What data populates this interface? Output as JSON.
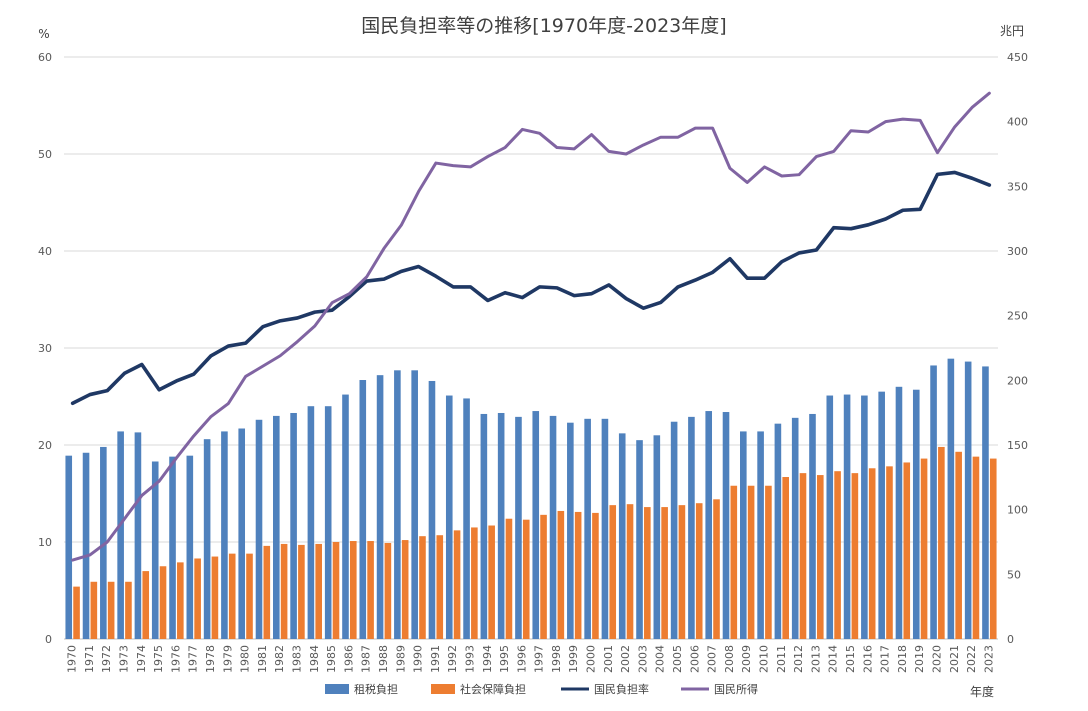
{
  "chart_data": {
    "type": "bar",
    "title": "国民負担率等の推移[1970年度-2023年度]",
    "y_left_unit": "%",
    "y_right_unit": "兆円",
    "x_unit": "年度",
    "y_left_range": [
      0,
      60
    ],
    "y_left_ticks": [
      "0",
      "10",
      "20",
      "30",
      "40",
      "50",
      "60"
    ],
    "y_right_range": [
      0,
      450
    ],
    "y_right_ticks": [
      "0",
      "50",
      "100",
      "150",
      "200",
      "250",
      "300",
      "350",
      "400",
      "450"
    ],
    "grid": true,
    "legend_position": "bottom",
    "categories": [
      "1970",
      "1971",
      "1972",
      "1973",
      "1974",
      "1975",
      "1976",
      "1977",
      "1978",
      "1979",
      "1980",
      "1981",
      "1982",
      "1983",
      "1984",
      "1985",
      "1986",
      "1987",
      "1988",
      "1989",
      "1990",
      "1991",
      "1992",
      "1993",
      "1994",
      "1995",
      "1996",
      "1997",
      "1998",
      "1999",
      "2000",
      "2001",
      "2002",
      "2003",
      "2004",
      "2005",
      "2006",
      "2007",
      "2008",
      "2009",
      "2010",
      "2011",
      "2012",
      "2013",
      "2014",
      "2015",
      "2016",
      "2017",
      "2018",
      "2019",
      "2020",
      "2021",
      "2022",
      "2023"
    ],
    "series": [
      {
        "name": "租税負担",
        "type": "bar",
        "axis": "left",
        "color": "#4f81bd",
        "values": [
          18.9,
          19.2,
          19.8,
          21.4,
          21.3,
          18.3,
          18.8,
          18.9,
          20.6,
          21.4,
          21.7,
          22.6,
          23.0,
          23.3,
          24.0,
          24.0,
          25.2,
          26.7,
          27.2,
          27.7,
          27.7,
          26.6,
          25.1,
          24.8,
          23.2,
          23.3,
          22.9,
          23.5,
          23.0,
          22.3,
          22.7,
          22.7,
          21.2,
          20.5,
          21.0,
          22.4,
          22.9,
          23.5,
          23.4,
          21.4,
          21.4,
          22.2,
          22.8,
          23.2,
          25.1,
          25.2,
          25.1,
          25.5,
          26.0,
          25.7,
          28.2,
          28.9,
          28.6,
          28.1
        ]
      },
      {
        "name": "社会保障負担",
        "type": "bar",
        "axis": "left",
        "color": "#ed7d31",
        "values": [
          5.4,
          5.9,
          5.9,
          5.9,
          7.0,
          7.5,
          7.9,
          8.3,
          8.5,
          8.8,
          8.8,
          9.6,
          9.8,
          9.7,
          9.8,
          10.0,
          10.1,
          10.1,
          9.9,
          10.2,
          10.6,
          10.7,
          11.2,
          11.5,
          11.7,
          12.4,
          12.3,
          12.8,
          13.2,
          13.1,
          13.0,
          13.8,
          13.9,
          13.6,
          13.6,
          13.8,
          14.0,
          14.4,
          15.8,
          15.8,
          15.8,
          16.7,
          17.1,
          16.9,
          17.3,
          17.1,
          17.6,
          17.8,
          18.2,
          18.6,
          19.8,
          19.3,
          18.8,
          18.6
        ]
      },
      {
        "name": "国民負担率",
        "type": "line",
        "axis": "left",
        "color": "#1f3864",
        "values": [
          24.3,
          25.2,
          25.6,
          27.4,
          28.3,
          25.7,
          26.6,
          27.3,
          29.2,
          30.2,
          30.5,
          32.2,
          32.8,
          33.1,
          33.7,
          33.9,
          35.3,
          36.9,
          37.1,
          37.9,
          38.4,
          37.4,
          36.3,
          36.3,
          34.9,
          35.7,
          35.2,
          36.3,
          36.2,
          35.4,
          35.6,
          36.5,
          35.1,
          34.1,
          34.7,
          36.3,
          37.0,
          37.8,
          39.2,
          37.2,
          37.2,
          38.9,
          39.8,
          40.1,
          42.4,
          42.3,
          42.7,
          43.3,
          44.2,
          44.3,
          47.9,
          48.1,
          47.5,
          46.8
        ]
      },
      {
        "name": "国民所得",
        "type": "line",
        "axis": "right",
        "color": "#8064a2",
        "values": [
          61,
          65,
          75,
          93,
          111,
          122,
          140,
          157,
          172,
          182,
          203,
          211,
          219,
          230,
          242,
          260,
          267,
          280,
          302,
          320,
          346,
          368,
          366,
          365,
          373,
          380,
          394,
          391,
          380,
          379,
          390,
          377,
          375,
          382,
          388,
          388,
          395,
          395,
          364,
          353,
          365,
          358,
          359,
          373,
          377,
          393,
          392,
          400,
          402,
          401,
          376,
          396,
          411,
          422
        ]
      }
    ]
  }
}
